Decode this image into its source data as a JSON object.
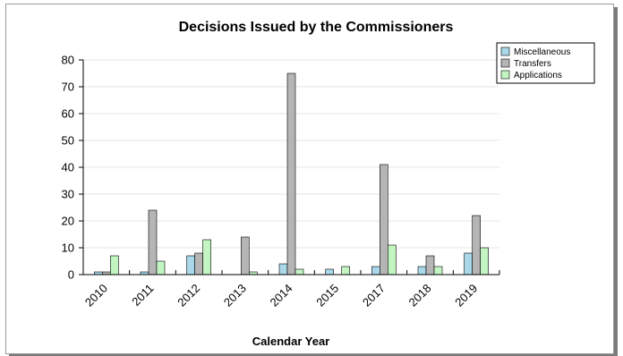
{
  "chart_data": {
    "type": "bar",
    "title": "Decisions Issued by the Commissioners",
    "xlabel": "Calendar Year",
    "ylabel": "",
    "categories": [
      "2010",
      "2011",
      "2012",
      "2013",
      "2014",
      "2015",
      "2017",
      "2018",
      "2019"
    ],
    "yticks": [
      "0",
      "10",
      "20",
      "30",
      "40",
      "50",
      "60",
      "70",
      "80"
    ],
    "ylim": [
      0,
      80
    ],
    "grid": true,
    "legend_position": "top-right",
    "series": [
      {
        "name": "Miscellaneous",
        "color": "#a8d8ea",
        "values": [
          1,
          1,
          7,
          0,
          4,
          2,
          3,
          3,
          8
        ]
      },
      {
        "name": "Transfers",
        "color": "#b5b5b5",
        "values": [
          1,
          24,
          8,
          14,
          75,
          0,
          41,
          7,
          22
        ]
      },
      {
        "name": "Applications",
        "color": "#c2f5c2",
        "values": [
          7,
          5,
          13,
          1,
          2,
          3,
          11,
          3,
          10
        ]
      }
    ]
  }
}
